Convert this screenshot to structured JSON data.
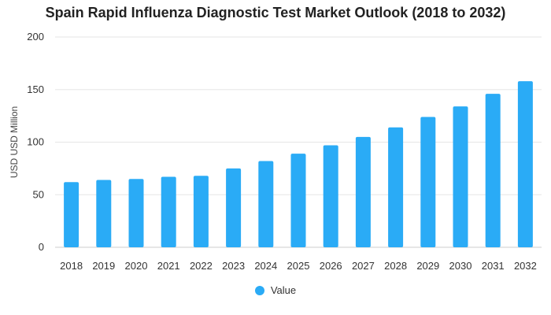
{
  "chart_data": {
    "type": "bar",
    "title": "Spain Rapid Influenza Diagnostic Test Market Outlook (2018 to 2032)",
    "xlabel": "",
    "ylabel": "USD USD Million",
    "categories": [
      "2018",
      "2019",
      "2020",
      "2021",
      "2022",
      "2023",
      "2024",
      "2025",
      "2026",
      "2027",
      "2028",
      "2029",
      "2030",
      "2031",
      "2032"
    ],
    "series": [
      {
        "name": "Value",
        "values": [
          62,
          64,
          65,
          67,
          68,
          75,
          82,
          89,
          97,
          105,
          114,
          124,
          134,
          146,
          158
        ]
      }
    ],
    "ylim": [
      0,
      200
    ],
    "yticks": [
      0,
      50,
      100,
      150,
      200
    ],
    "grid": true,
    "legend_position": "bottom-center",
    "bar_color": "#2aabf6",
    "grid_color": "#e6e6e6"
  }
}
